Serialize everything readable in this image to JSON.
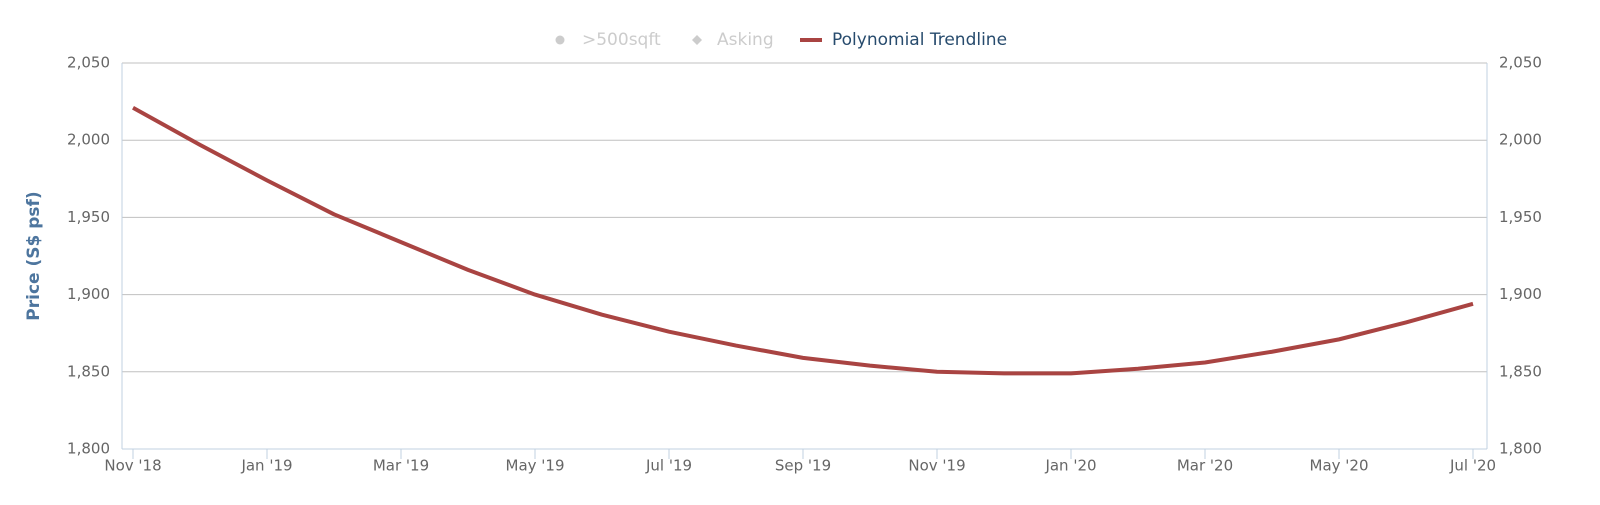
{
  "chart_data": {
    "type": "line",
    "categories": [
      "Nov '18",
      null,
      "Jan '19",
      null,
      "Mar '19",
      null,
      "May '19",
      null,
      "Jul '19",
      null,
      "Sep '19",
      null,
      "Nov '19",
      null,
      "Jan '20",
      null,
      "Mar '20",
      null,
      "May '20",
      null,
      "Jul '20"
    ],
    "series": [
      {
        "name": ">500sqft",
        "marker": "circle",
        "visible": false
      },
      {
        "name": "Asking",
        "marker": "diamond",
        "visible": false
      },
      {
        "name": "Polynomial Trendline",
        "color": "#a94442",
        "visible": true,
        "values": [
          2021,
          1997,
          1974,
          1952,
          1934,
          1916,
          1900,
          1887,
          1876,
          1867,
          1859,
          1854,
          1850,
          1849,
          1849,
          1852,
          1856,
          1863,
          1871,
          1882,
          1894
        ]
      }
    ],
    "y_label": "Price (S$ psf)",
    "ylim": [
      1800,
      2050
    ],
    "yticks": [
      {
        "value": 1800,
        "label": "1,800"
      },
      {
        "value": 1850,
        "label": "1,850"
      },
      {
        "value": 1900,
        "label": "1,900"
      },
      {
        "value": 1950,
        "label": "1,950"
      },
      {
        "value": 2000,
        "label": "2,000"
      },
      {
        "value": 2050,
        "label": "2,050"
      }
    ],
    "y2lim": [
      1800,
      2050
    ],
    "y2ticks": [
      {
        "value": 1800,
        "label": "1,800"
      },
      {
        "value": 1850,
        "label": "1,850"
      },
      {
        "value": 1900,
        "label": "1,900"
      },
      {
        "value": 1950,
        "label": "1,950"
      },
      {
        "value": 2000,
        "label": "2,000"
      },
      {
        "value": 2050,
        "label": "2,050"
      }
    ],
    "grid": true,
    "legend": "top"
  }
}
